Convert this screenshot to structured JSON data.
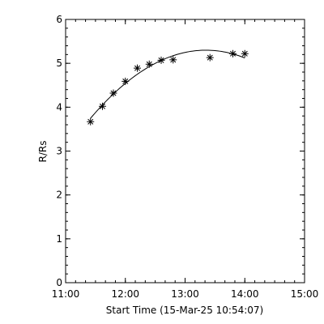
{
  "chart_data": {
    "type": "scatter",
    "xlabel": "Start Time (15-Mar-25 10:54:07)",
    "ylabel": "R/Rs",
    "xlim": [
      11.0,
      15.0
    ],
    "ylim": [
      0,
      6
    ],
    "x_ticks": [
      "11:00",
      "12:00",
      "13:00",
      "14:00",
      "15:00"
    ],
    "y_ticks": [
      "0",
      "1",
      "2",
      "3",
      "4",
      "5",
      "6"
    ],
    "points": [
      {
        "x": "11:25",
        "y": 3.67
      },
      {
        "x": "11:37",
        "y": 4.02
      },
      {
        "x": "11:48",
        "y": 4.32
      },
      {
        "x": "12:00",
        "y": 4.59
      },
      {
        "x": "12:12",
        "y": 4.89
      },
      {
        "x": "12:24",
        "y": 4.98
      },
      {
        "x": "12:36",
        "y": 5.07
      },
      {
        "x": "12:48",
        "y": 5.08
      },
      {
        "x": "13:25",
        "y": 5.13
      },
      {
        "x": "13:48",
        "y": 5.22
      },
      {
        "x": "14:00",
        "y": 5.22
      }
    ],
    "fit_curve": true,
    "marker": "asterisk",
    "grid": false
  }
}
